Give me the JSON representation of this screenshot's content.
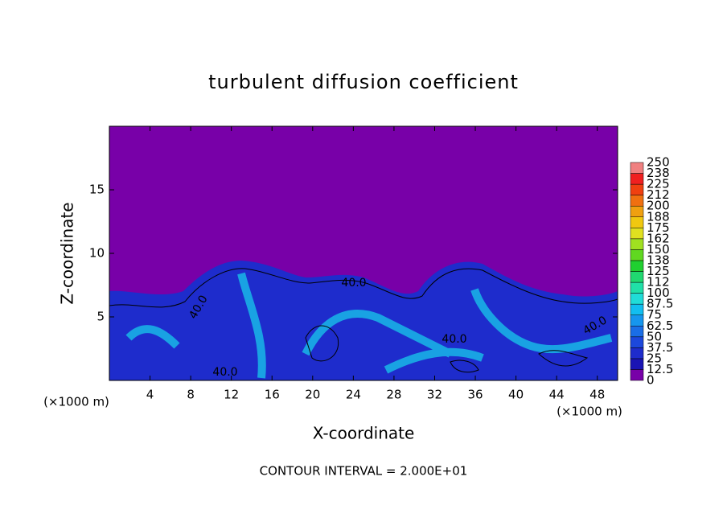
{
  "chart_data": {
    "type": "contour",
    "title": "turbulent diffusion coefficient",
    "x_label": "X-coordinate",
    "y_label": "Z-coordinate",
    "x_unit": "(×1000 m)",
    "footer": "CONTOUR INTERVAL = 2.000E+01",
    "xlim": [
      0,
      50
    ],
    "ylim": [
      0,
      20
    ],
    "xticks": [
      4,
      8,
      12,
      16,
      20,
      24,
      28,
      32,
      36,
      40,
      44,
      48
    ],
    "yticks": [
      5,
      10,
      15
    ],
    "contour_labels": [
      "40.0",
      "40.0",
      "40.0",
      "40.0",
      "40.0"
    ],
    "colorbar": {
      "levels": [
        0,
        12.5,
        25,
        37.5,
        50,
        62.5,
        75,
        87.5,
        100,
        {
          "value": 112.5,
          "label": "112"
        },
        125,
        {
          "value": 137.5,
          "label": "138"
        },
        150,
        {
          "value": 162.5,
          "label": "162"
        },
        175,
        {
          "value": 187.5,
          "label": "188"
        },
        200,
        {
          "value": 212.5,
          "label": "212"
        },
        225,
        {
          "value": 237.5,
          "label": "238"
        },
        250
      ],
      "colors": [
        "#7800a8",
        "#1a14b4",
        "#1e2ccc",
        "#1c48dc",
        "#1a6ee6",
        "#1696ee",
        "#12bef0",
        "#20dcd8",
        "#20e0a8",
        "#20d870",
        "#20d030",
        "#60d820",
        "#a0e020",
        "#e0e020",
        "#f0c810",
        "#f0a010",
        "#f07010",
        "#f04010",
        "#f02020",
        "#f08080"
      ]
    }
  }
}
